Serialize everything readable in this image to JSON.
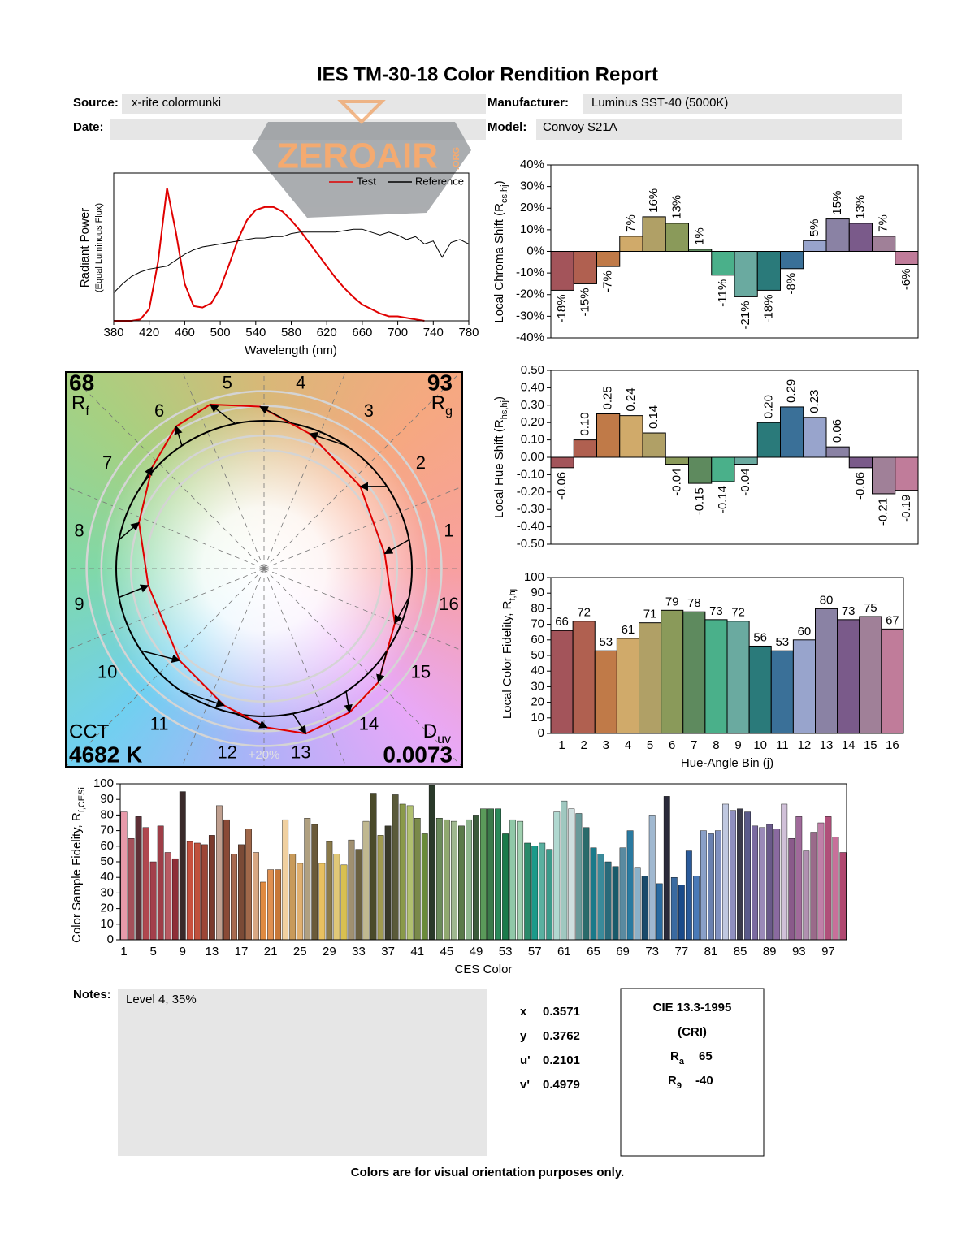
{
  "title": "IES TM-30-18 Color Rendition Report",
  "header": {
    "source_label": "Source:",
    "source": "x-rite colormunki",
    "manufacturer_label": "Manufacturer:",
    "manufacturer": "Luminus SST-40 (5000K)",
    "date_label": "Date:",
    "model_label": "Model:",
    "model": "Convoy S21A"
  },
  "watermark": {
    "text": "ZEROAIR",
    "suffix": ".ORG"
  },
  "chart_data": [
    {
      "type": "line",
      "x": [
        380,
        390,
        400,
        410,
        420,
        430,
        440,
        450,
        460,
        470,
        480,
        490,
        500,
        510,
        520,
        530,
        540,
        550,
        560,
        570,
        580,
        590,
        600,
        610,
        620,
        630,
        640,
        650,
        660,
        670,
        680,
        690,
        700,
        710,
        720,
        730,
        740,
        750,
        760,
        770,
        780
      ],
      "xlim": [
        380,
        780
      ],
      "xticks": [
        380,
        420,
        460,
        500,
        540,
        580,
        620,
        660,
        700,
        740,
        780
      ],
      "ylim": [
        0,
        1
      ],
      "x_label": "Wavelength (nm)",
      "y_label": "Radiant Power",
      "y_label_note": "(Equal Luminous Flux)",
      "legend": "upper right",
      "series": [
        {
          "name": "Test",
          "color": "#e00000",
          "values": [
            0,
            0,
            0,
            0.01,
            0.08,
            0.4,
            0.9,
            0.6,
            0.25,
            0.1,
            0.09,
            0.12,
            0.22,
            0.38,
            0.55,
            0.68,
            0.75,
            0.77,
            0.77,
            0.74,
            0.68,
            0.61,
            0.53,
            0.45,
            0.37,
            0.29,
            0.22,
            0.16,
            0.11,
            0.08,
            0.05,
            0.03,
            0.03,
            0.02,
            0.01,
            0,
            null,
            null,
            null,
            null,
            null
          ]
        },
        {
          "name": "Reference",
          "color": "#000000",
          "values": [
            0.19,
            0.25,
            0.3,
            0.33,
            0.35,
            0.36,
            0.37,
            0.41,
            0.45,
            0.48,
            0.5,
            0.51,
            0.52,
            0.53,
            0.54,
            0.55,
            0.56,
            0.56,
            0.57,
            0.57,
            0.59,
            0.6,
            0.6,
            0.6,
            0.6,
            0.6,
            0.61,
            0.62,
            0.62,
            0.6,
            0.58,
            0.6,
            0.58,
            0.55,
            0.57,
            0.52,
            0.54,
            0.43,
            0.53,
            0.55,
            0.52
          ]
        }
      ]
    },
    {
      "type": "bar",
      "values": [
        -18,
        -15,
        -7,
        7,
        16,
        13,
        1,
        -11,
        -21,
        -18,
        -8,
        5,
        15,
        13,
        7,
        -6
      ],
      "value_labels": [
        "-18%",
        "-15%",
        "-7%",
        "7%",
        "16%",
        "13%",
        "1%",
        "-11%",
        "-21%",
        "-18%",
        "-8%",
        "5%",
        "15%",
        "13%",
        "7%",
        "-6%"
      ],
      "colors": [
        "#a3545a",
        "#b06050",
        "#c07a48",
        "#d0aa6a",
        "#b0a066",
        "#8a9a5a",
        "#5e8a5e",
        "#4ab08a",
        "#6aaaa0",
        "#2a7a7a",
        "#3a7098",
        "#98a4cc",
        "#8a82a4",
        "#7a5a8a",
        "#a08098",
        "#c07c9a"
      ],
      "ylim": [
        -40,
        40
      ],
      "yticks": [
        {
          "value": -40,
          "label": "-40%"
        },
        {
          "value": -30,
          "label": "-30%"
        },
        {
          "value": -20,
          "label": "-20%"
        },
        {
          "value": -10,
          "label": "-10%"
        },
        {
          "value": 0,
          "label": "0%"
        },
        {
          "value": 10,
          "label": "10%"
        },
        {
          "value": 20,
          "label": "20%"
        },
        {
          "value": 30,
          "label": "30%"
        },
        {
          "value": 40,
          "label": "40%"
        }
      ],
      "y_label": "Local Chroma Shift (R",
      "y_label_sub": "cs,hj",
      "y_label_end": ")"
    },
    {
      "type": "bar",
      "values": [
        -0.06,
        0.1,
        0.25,
        0.24,
        0.14,
        -0.04,
        -0.15,
        -0.14,
        -0.04,
        0.2,
        0.29,
        0.23,
        0.06,
        -0.06,
        -0.21,
        -0.19
      ],
      "value_labels": [
        "-0.06",
        "0.10",
        "0.25",
        "0.24",
        "0.14",
        "-0.04",
        "-0.15",
        "-0.14",
        "-0.04",
        "0.20",
        "0.29",
        "0.23",
        "0.06",
        "-0.06",
        "-0.21",
        "-0.19"
      ],
      "colors": [
        "#a3545a",
        "#b06050",
        "#c07a48",
        "#d0aa6a",
        "#b0a066",
        "#8a9a5a",
        "#5e8a5e",
        "#4ab08a",
        "#6aaaa0",
        "#2a7a7a",
        "#3a7098",
        "#98a4cc",
        "#8a82a4",
        "#7a5a8a",
        "#a08098",
        "#c07c9a"
      ],
      "ylim": [
        -0.5,
        0.5
      ],
      "yticks": [
        {
          "value": -0.5,
          "label": "-0.50"
        },
        {
          "value": -0.4,
          "label": "-0.40"
        },
        {
          "value": -0.3,
          "label": "-0.30"
        },
        {
          "value": -0.2,
          "label": "-0.20"
        },
        {
          "value": -0.1,
          "label": "-0.10"
        },
        {
          "value": 0,
          "label": "0.00"
        },
        {
          "value": 0.1,
          "label": "0.10"
        },
        {
          "value": 0.2,
          "label": "0.20"
        },
        {
          "value": 0.3,
          "label": "0.30"
        },
        {
          "value": 0.4,
          "label": "0.40"
        },
        {
          "value": 0.5,
          "label": "0.50"
        }
      ],
      "y_label": "Local Hue Shift (R",
      "y_label_sub": "hs,hj",
      "y_label_end": ")"
    },
    {
      "type": "bar",
      "categories": [
        "1",
        "2",
        "3",
        "4",
        "5",
        "6",
        "7",
        "8",
        "9",
        "10",
        "11",
        "12",
        "13",
        "14",
        "15",
        "16"
      ],
      "values": [
        66,
        72,
        53,
        61,
        71,
        79,
        78,
        73,
        72,
        56,
        53,
        60,
        80,
        73,
        75,
        67
      ],
      "colors": [
        "#a3545a",
        "#b06050",
        "#c07a48",
        "#d0aa6a",
        "#b0a066",
        "#8a9a5a",
        "#5e8a5e",
        "#4ab08a",
        "#6aaaa0",
        "#2a7a7a",
        "#3a7098",
        "#98a4cc",
        "#8a82a4",
        "#7a5a8a",
        "#a08098",
        "#c07c9a"
      ],
      "ylim": [
        0,
        100
      ],
      "yticks": [
        0,
        10,
        20,
        30,
        40,
        50,
        60,
        70,
        80,
        90,
        100
      ],
      "x_label": "Hue-Angle Bin (j)",
      "y_label": "Local Color Fidelity, R",
      "y_label_sub": "f,hj"
    },
    {
      "type": "bar",
      "categories": [
        "1",
        null,
        null,
        null,
        "5",
        null,
        null,
        null,
        "9",
        null,
        null,
        null,
        "13",
        null,
        null,
        null,
        "17",
        null,
        null,
        null,
        "21",
        null,
        null,
        null,
        "25",
        null,
        null,
        null,
        "29",
        null,
        null,
        null,
        "33",
        null,
        null,
        null,
        "37",
        null,
        null,
        null,
        "41",
        null,
        null,
        null,
        "45",
        null,
        null,
        null,
        "49",
        null,
        null,
        null,
        "53",
        null,
        null,
        null,
        "57",
        null,
        null,
        null,
        "61",
        null,
        null,
        null,
        "65",
        null,
        null,
        null,
        "69",
        null,
        null,
        null,
        "73",
        null,
        null,
        null,
        "77",
        null,
        null,
        null,
        "81",
        null,
        null,
        null,
        "85",
        null,
        null,
        null,
        "89",
        null,
        null,
        null,
        "93",
        null,
        null,
        null,
        "97",
        null,
        null
      ],
      "values": [
        82,
        65,
        79,
        72,
        50,
        73,
        56,
        52,
        95,
        63,
        62,
        61,
        67,
        86,
        77,
        55,
        61,
        71,
        56,
        37,
        45,
        45,
        77,
        55,
        49,
        78,
        74,
        49,
        63,
        55,
        48,
        64,
        58,
        76,
        94,
        67,
        73,
        93,
        87,
        86,
        78,
        68,
        99,
        78,
        77,
        76,
        73,
        77,
        80,
        84,
        84,
        84,
        68,
        77,
        76,
        62,
        60,
        62,
        58,
        82,
        89,
        84,
        81,
        72,
        59,
        55,
        50,
        47,
        59,
        70,
        46,
        41,
        80,
        36,
        92,
        40,
        35,
        57,
        41,
        70,
        68,
        70,
        87,
        83,
        84,
        82,
        73,
        72,
        74,
        71,
        87,
        65,
        79,
        57,
        69,
        75,
        79,
        66,
        56
      ],
      "colors": [
        "#e79aaa",
        "#a4505a",
        "#5e2f36",
        "#b0474f",
        "#a33f4b",
        "#9e3d47",
        "#b85a62",
        "#8e2f38",
        "#3a2a2a",
        "#c9503e",
        "#c0503c",
        "#9c4636",
        "#7a3a2c",
        "#c0a090",
        "#8a4a36",
        "#a86a50",
        "#7a4a36",
        "#a0684a",
        "#d8a884",
        "#e08a40",
        "#e09050",
        "#c87838",
        "#f0d0a0",
        "#c89a5a",
        "#e0b070",
        "#b0a080",
        "#6a5a3a",
        "#e8c060",
        "#8a7a4a",
        "#e0c878",
        "#d8c050",
        "#a09070",
        "#6a6040",
        "#c0b890",
        "#4a4a2a",
        "#a09a50",
        "#3a3a2a",
        "#5a5a3a",
        "#8a9a4a",
        "#b0c070",
        "#7a8a4a",
        "#6a8a3a",
        "#2a3a2a",
        "#6a8a5a",
        "#90a870",
        "#a0b890",
        "#5a7a4a",
        "#90b890",
        "#3a5a3a",
        "#5a9a5a",
        "#3a7a4a",
        "#2a8a5a",
        "#1a7a4a",
        "#90c8a8",
        "#a0d0b0",
        "#2a8a6a",
        "#1a9a8a",
        "#5ab0a0",
        "#3a9a8a",
        "#b0d8d0",
        "#a0c8c0",
        "#d0e0e0",
        "#6a9a9a",
        "#2a6a6a",
        "#1a7a8a",
        "#3a8a9a",
        "#2a6a7a",
        "#1a5a6a",
        "#5a8aa0",
        "#2a7aa0",
        "#8ab0c8",
        "#1a4a6a",
        "#a0b8d0",
        "#2a6aa0",
        "#2a2a3a",
        "#3a6aa0",
        "#1a4a8a",
        "#2a5a9a",
        "#4a7ab8",
        "#8aa0c8",
        "#6a80b0",
        "#8090c0",
        "#c0c8e0",
        "#9090c0",
        "#3a3a4a",
        "#5a5a8a",
        "#7a6aa0",
        "#9a8ab8",
        "#6a5a8a",
        "#8a6aa0",
        "#d0c0d8",
        "#8a5a8a",
        "#a06a9a",
        "#b090b0",
        "#9a6a8a",
        "#c080a8",
        "#b0507a",
        "#c8709a",
        "#b04870"
      ],
      "ylim": [
        0,
        100
      ],
      "yticks": [
        0,
        10,
        20,
        30,
        40,
        50,
        60,
        70,
        80,
        90,
        100
      ],
      "x_label": "CES Color",
      "y_label": "Color Sample Fidelity, R",
      "y_label_sub": "f,CESi"
    }
  ],
  "vector_graphic": {
    "rf": 68,
    "rf_symbol": "R",
    "rf_sub": "f",
    "rg": 93,
    "rg_symbol": "R",
    "rg_sub": "g",
    "cct_label": "CCT",
    "cct": "4682 K",
    "duv_symbol": "D",
    "duv_sub": "uv",
    "duv": 0.0073,
    "scale_label": "+20%"
  },
  "notes": {
    "label": "Notes:",
    "text": "Level 4, 35%"
  },
  "chromaticity": {
    "labels": [
      "x",
      "y",
      "u'",
      "v'"
    ],
    "values": [
      0.3571,
      0.3762,
      0.2101,
      0.4979
    ]
  },
  "cri": {
    "title": "CIE 13.3-1995",
    "subtitle": "(CRI)",
    "ra_symbol": "R",
    "ra_sub": "a",
    "ra": 65,
    "r9_symbol": "R",
    "r9_sub": "9",
    "r9": -40
  },
  "footer": "Colors are for visual orientation purposes only."
}
